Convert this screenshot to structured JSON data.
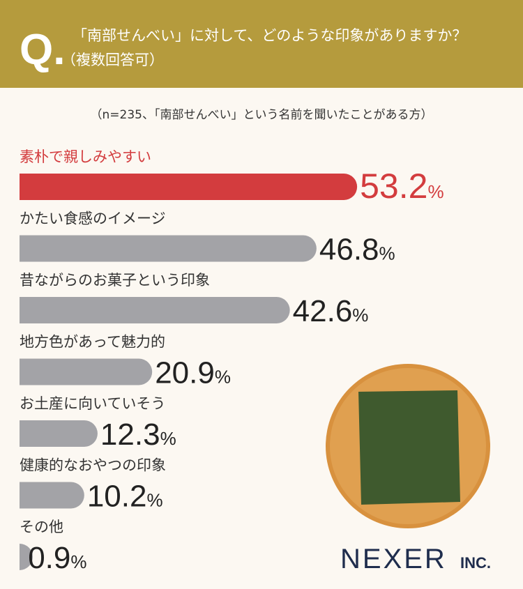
{
  "header": {
    "q_mark": "Q.",
    "question": "「南部せんべい」に対して、どのような印象がありますか？",
    "note": "（複数回答可）"
  },
  "chart_data": {
    "type": "bar",
    "orientation": "horizontal",
    "subtitle": "（n=235、「南部せんべい」という名前を聞いたことがある方）",
    "categories": [
      "素朴で親しみやすい",
      "かたい食感のイメージ",
      "昔ながらのお菓子という印象",
      "地方色があって魅力的",
      "お土産に向いていそう",
      "健康的なおやつの印象",
      "その他"
    ],
    "values": [
      53.2,
      46.8,
      42.6,
      20.9,
      12.3,
      10.2,
      0.9
    ],
    "value_labels": [
      "53.2%",
      "46.8%",
      "42.6%",
      "20.9%",
      "12.3%",
      "10.2%",
      "0.9%"
    ],
    "colors": [
      "#d33c3e",
      "#a3a3a7",
      "#a3a3a7",
      "#a3a3a7",
      "#a3a3a7",
      "#a3a3a7",
      "#a3a3a7"
    ],
    "label_colors": [
      "#d33c3e",
      "#333333",
      "#333333",
      "#333333",
      "#333333",
      "#333333",
      "#333333"
    ]
  },
  "logo": {
    "name": "NEXER",
    "suffix": "INC."
  }
}
